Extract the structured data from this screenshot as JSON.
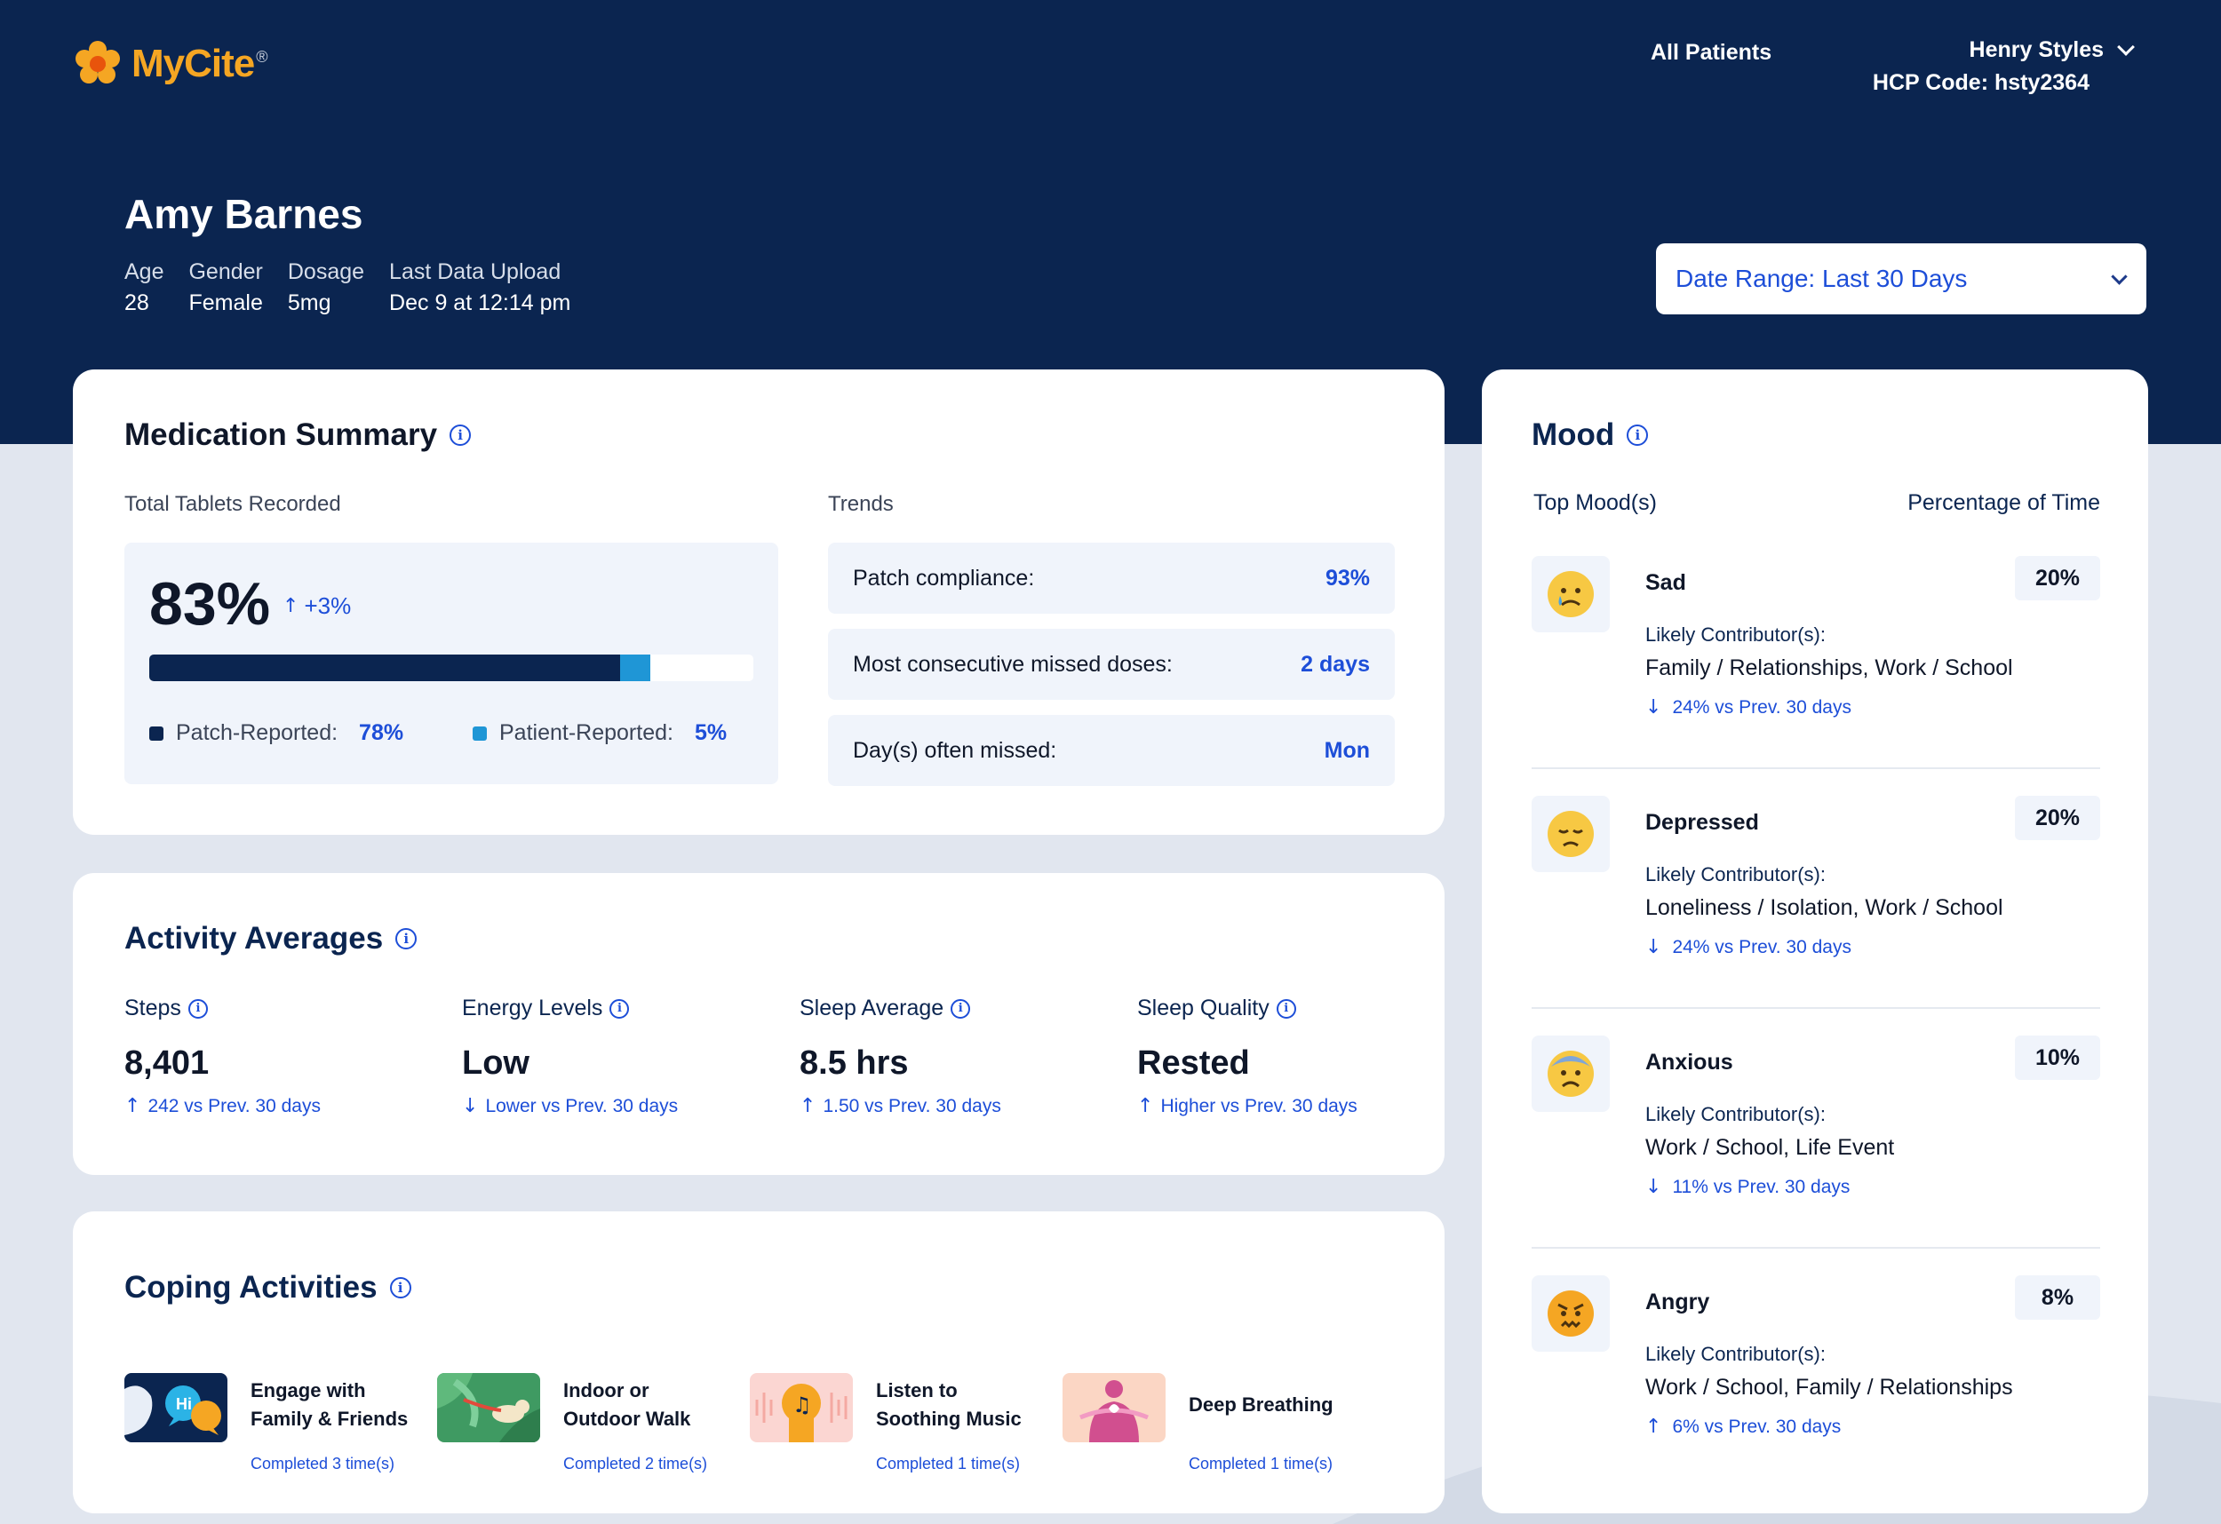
{
  "app": {
    "logo_text": "MyCite",
    "logo_reg": "®"
  },
  "nav": {
    "all_patients": "All Patients"
  },
  "user": {
    "name": "Henry Styles",
    "hcp_code": "HCP Code: hsty2364"
  },
  "patient": {
    "name": "Amy Barnes",
    "fields": [
      {
        "label": "Age",
        "value": "28"
      },
      {
        "label": "Gender",
        "value": "Female"
      },
      {
        "label": "Dosage",
        "value": "5mg"
      },
      {
        "label": "Last Data Upload",
        "value": "Dec 9 at 12:14 pm"
      }
    ]
  },
  "date_range": {
    "label": "Date Range: Last 30 Days"
  },
  "medication": {
    "title": "Medication Summary",
    "tablets_label": "Total Tablets Recorded",
    "total_pct": "83%",
    "total_delta": "+3%",
    "patch_fraction": 0.78,
    "patient_fraction": 0.05,
    "patch_label": "Patch-Reported:",
    "patch_value": "78%",
    "patient_label": "Patient-Reported:",
    "patient_value": "5%",
    "trends_label": "Trends",
    "trends": [
      {
        "label": "Patch compliance:",
        "value": "93%"
      },
      {
        "label": "Most consecutive missed doses:",
        "value": "2 days"
      },
      {
        "label": "Day(s) often missed:",
        "value": "Mon"
      }
    ]
  },
  "activity": {
    "title": "Activity Averages",
    "metrics": [
      {
        "label": "Steps",
        "value": "8,401",
        "delta": "242 vs Prev. 30 days",
        "direction": "up"
      },
      {
        "label": "Energy Levels",
        "value": "Low",
        "delta": "Lower vs Prev. 30 days",
        "direction": "down"
      },
      {
        "label": "Sleep Average",
        "value": "8.5 hrs",
        "delta": "1.50 vs Prev. 30 days",
        "direction": "up"
      },
      {
        "label": "Sleep Quality",
        "value": "Rested",
        "delta": "Higher vs Prev. 30 days",
        "direction": "up"
      }
    ]
  },
  "coping": {
    "title": "Coping Activities",
    "items": [
      {
        "line1": "Engage with",
        "line2": "Family & Friends",
        "completed": "Completed 3 time(s)",
        "icon": "chat-bubbles-icon"
      },
      {
        "line1": "Indoor or",
        "line2": "Outdoor Walk",
        "completed": "Completed 2 time(s)",
        "icon": "dog-walk-icon"
      },
      {
        "line1": "Listen to",
        "line2": "Soothing Music",
        "completed": "Completed 1 time(s)",
        "icon": "music-icon"
      },
      {
        "line1": "Deep Breathing",
        "line2": "",
        "completed": "Completed 1 time(s)",
        "icon": "breathing-icon"
      }
    ]
  },
  "mood": {
    "title": "Mood",
    "col_left": "Top Mood(s)",
    "col_right": "Percentage of Time",
    "likely_label": "Likely Contributor(s):",
    "items": [
      {
        "name": "Sad",
        "pct": "20%",
        "contributors": "Family / Relationships, Work / School",
        "delta": "24% vs Prev. 30 days",
        "direction": "down",
        "emoji": "sad-face-icon"
      },
      {
        "name": "Depressed",
        "pct": "20%",
        "contributors": "Loneliness / Isolation, Work / School",
        "delta": "24% vs Prev. 30 days",
        "direction": "down",
        "emoji": "depressed-face-icon"
      },
      {
        "name": "Anxious",
        "pct": "10%",
        "contributors": "Work / School, Life Event",
        "delta": "11% vs Prev. 30 days",
        "direction": "down",
        "emoji": "anxious-face-icon"
      },
      {
        "name": "Angry",
        "pct": "8%",
        "contributors": "Work / School, Family / Relationships",
        "delta": "6% vs Prev. 30 days",
        "direction": "up",
        "emoji": "angry-face-icon"
      }
    ]
  },
  "colors": {
    "navy": "#0b2550",
    "accent_blue": "#1d4ed8",
    "patient_cyan": "#1f96d6",
    "logo_orange": "#f5a623"
  }
}
